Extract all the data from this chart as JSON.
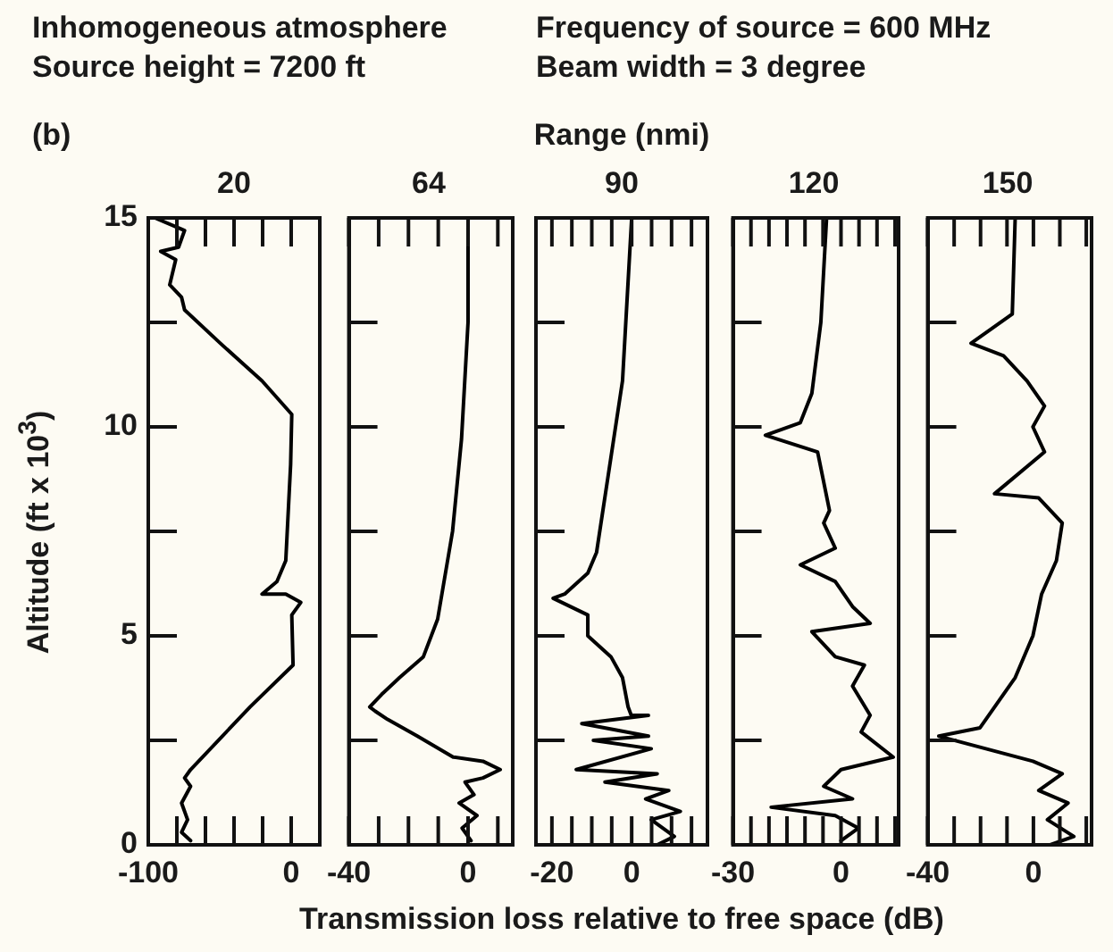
{
  "chart_data": [
    {
      "type": "line",
      "title": "20",
      "ylabel": "Altitude (ft x 10$^{3}$)",
      "annotations": [
        "Inhomogeneous atmosphere",
        "Source height = 7200 ft",
        "(b)"
      ],
      "xlim": [
        -100,
        20
      ],
      "xticks": [
        -100,
        {
          "value": -80,
          "label": null
        },
        {
          "value": -60,
          "label": null
        },
        {
          "value": -40,
          "label": null
        },
        {
          "value": -20,
          "label": null
        },
        0
      ],
      "ylim": [
        0,
        15
      ],
      "yticks": [
        0,
        {
          "value": 2.5,
          "label": null
        },
        5,
        {
          "value": 7.5,
          "label": null
        },
        10,
        {
          "value": 12.5,
          "label": null
        },
        15
      ],
      "series": [
        {
          "color": "#000000",
          "x": [
            -95.4,
            -74.6,
            -78.8,
            -91.3,
            -80.8,
            -85,
            -76.7,
            -74.6,
            -49.6,
            -20.4,
            0.4,
            -0.4,
            -3.8,
            -10,
            -20.4,
            -3.8,
            6.7,
            0.4,
            1.3,
            -28.8,
            -70.4,
            -74.6,
            -70.4,
            -76.7,
            -72.5,
            -76.7,
            -70.4
          ],
          "values": [
            15,
            14.7,
            14.3,
            14.2,
            14,
            13.4,
            13.1,
            12.8,
            12,
            11.1,
            10.3,
            9.1,
            6.8,
            6.3,
            6,
            6,
            5.8,
            5.5,
            4.3,
            3.3,
            1.8,
            1.6,
            1.4,
            1,
            0.6,
            0.3,
            0.1
          ]
        }
      ]
    },
    {
      "type": "line",
      "title": "64",
      "xlim": [
        -40,
        15
      ],
      "xticks": [
        -40,
        {
          "value": -30,
          "label": null
        },
        {
          "value": -20,
          "label": null
        },
        {
          "value": -10,
          "label": null
        },
        0,
        {
          "value": 10,
          "label": null
        }
      ],
      "ylim": [
        0,
        15
      ],
      "yticks": [
        0,
        {
          "value": 2.5,
          "label": null
        },
        5,
        {
          "value": 7.5,
          "label": null
        },
        10,
        {
          "value": 12.5,
          "label": null
        },
        15
      ],
      "tick_labels": "x",
      "series": [
        {
          "color": "#000000",
          "x": [
            0,
            0,
            -2.2,
            -5.2,
            -10.2,
            -15,
            -23,
            -29,
            -33,
            -31.2,
            -27,
            -17,
            -5,
            5,
            10.8,
            5,
            -1,
            2,
            -3,
            3,
            -2,
            1
          ],
          "values": [
            15,
            12.5,
            9.7,
            7.5,
            5.4,
            4.5,
            4,
            3.6,
            3.3,
            3.2,
            3,
            2.6,
            2.1,
            2,
            1.8,
            1.6,
            1.5,
            1.2,
            1,
            0.7,
            0.4,
            0.1
          ]
        }
      ]
    },
    {
      "type": "line",
      "title": "90",
      "subtitle": "Range (nmi)",
      "xlabel": "Transmission loss relative to free space (dB)",
      "annotations": [
        "Frequency of source = 600 MHz",
        "Beam width = 3 degree"
      ],
      "xlim": [
        -24,
        19
      ],
      "xticks": [
        -20,
        {
          "value": -15,
          "label": null
        },
        {
          "value": -10,
          "label": null
        },
        {
          "value": -5,
          "label": null
        },
        0,
        {
          "value": 5,
          "label": null
        },
        {
          "value": 10,
          "label": null
        },
        {
          "value": 15,
          "label": null
        }
      ],
      "ylim": [
        0,
        15
      ],
      "yticks": [
        0,
        {
          "value": 2.5,
          "label": null
        },
        5,
        {
          "value": 7.5,
          "label": null
        },
        10,
        {
          "value": 12.5,
          "label": null
        },
        15
      ],
      "tick_labels": "x",
      "series": [
        {
          "color": "#000000",
          "x": [
            0,
            -2.3,
            -8.8,
            -11,
            -16.8,
            -19.7,
            -11,
            -11,
            -5.2,
            -2.3,
            -0.9,
            -0.1,
            4.2,
            -12.5,
            4.2,
            -9.6,
            4.9,
            -13.9,
            6.4,
            -6.7,
            9.3,
            3.5,
            12.2,
            4.9,
            10.7,
            6.4
          ],
          "values": [
            15,
            11.1,
            7,
            6.5,
            6,
            5.9,
            5.5,
            5,
            4.5,
            4,
            3.3,
            3.1,
            3.1,
            2.9,
            2.6,
            2.5,
            2.3,
            1.8,
            1.7,
            1.5,
            1.3,
            1.1,
            0.8,
            0.6,
            0.2,
            0
          ]
        }
      ]
    },
    {
      "type": "line",
      "title": "120",
      "xlim": [
        -30,
        16
      ],
      "xticks": [
        -30,
        {
          "value": -25,
          "label": null
        },
        {
          "value": -20,
          "label": null
        },
        {
          "value": -15,
          "label": null
        },
        {
          "value": -10,
          "label": null
        },
        {
          "value": -5,
          "label": null
        },
        0,
        {
          "value": 5,
          "label": null
        },
        {
          "value": 10,
          "label": null
        },
        {
          "value": 15,
          "label": null
        }
      ],
      "ylim": [
        0,
        15
      ],
      "yticks": [
        0,
        {
          "value": 2.5,
          "label": null
        },
        5,
        {
          "value": 7.5,
          "label": null
        },
        10,
        {
          "value": 12.5,
          "label": null
        },
        15
      ],
      "tick_labels": "x",
      "series": [
        {
          "color": "#000000",
          "x": [
            -4,
            -5.6,
            -8.1,
            -11.3,
            -21,
            -6.5,
            -3.2,
            -4.8,
            -1.6,
            -11.3,
            -1.6,
            3.2,
            8.1,
            -8.1,
            -1.6,
            6.5,
            3.2,
            8.1,
            5.6,
            14.5,
            0,
            -4.8,
            3.2,
            -19.4,
            -1.6,
            4.8,
            0
          ],
          "values": [
            15,
            12.5,
            10.8,
            10.1,
            9.8,
            9.4,
            8,
            7.7,
            7.1,
            6.7,
            6.3,
            5.7,
            5.3,
            5.1,
            4.5,
            4.3,
            3.8,
            3.1,
            2.7,
            2.1,
            1.8,
            1.4,
            1.1,
            0.9,
            0.7,
            0.4,
            0.1
          ]
        }
      ]
    },
    {
      "type": "line",
      "title": "150",
      "xlim": [
        -40,
        22
      ],
      "xticks": [
        -40,
        {
          "value": -30,
          "label": null
        },
        {
          "value": -20,
          "label": null
        },
        {
          "value": -10,
          "label": null
        },
        0,
        {
          "value": 10,
          "label": null
        },
        {
          "value": 20,
          "label": null
        }
      ],
      "ylim": [
        0,
        15
      ],
      "yticks": [
        0,
        {
          "value": 2.5,
          "label": null
        },
        5,
        {
          "value": 7.5,
          "label": null
        },
        10,
        {
          "value": 12.5,
          "label": null
        },
        15
      ],
      "tick_labels": "x",
      "series": [
        {
          "color": "#000000",
          "x": [
            -6.9,
            -8,
            -23.6,
            -11.3,
            -2.4,
            4.2,
            -0.2,
            4.2,
            -14.7,
            2,
            10.9,
            8.7,
            3.1,
            -0.2,
            -6.9,
            -20.2,
            -35.8,
            -18,
            -0.2,
            10.9,
            2,
            13.1,
            5.3,
            15.3,
            6.4
          ],
          "values": [
            15,
            12.7,
            12,
            11.7,
            11.1,
            10.5,
            10,
            9.4,
            8.4,
            8.3,
            7.7,
            6.8,
            6,
            5,
            4,
            2.8,
            2.6,
            2.3,
            2,
            1.7,
            1.3,
            1,
            0.6,
            0.2,
            0
          ]
        }
      ]
    }
  ]
}
